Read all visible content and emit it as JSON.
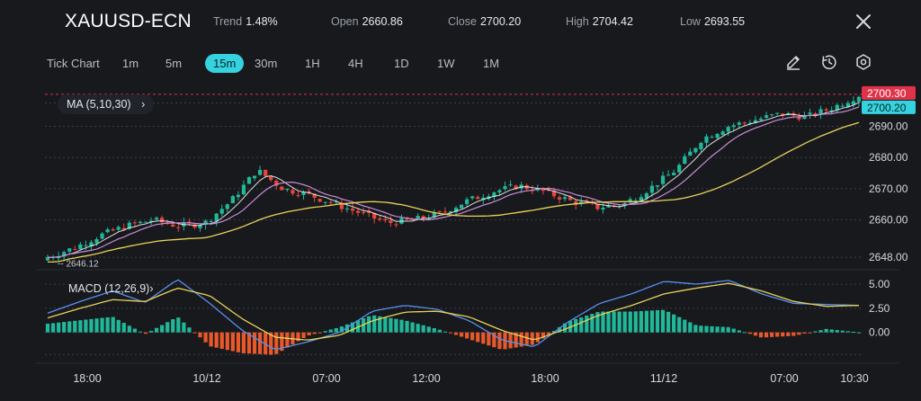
{
  "header": {
    "symbol": "XAUUSD-ECN",
    "trend_label": "Trend",
    "trend_value": "1.48%",
    "open_label": "Open",
    "open_value": "2660.86",
    "close_label": "Close",
    "close_value": "2700.20",
    "high_label": "High",
    "high_value": "2704.42",
    "low_label": "Low",
    "low_value": "2693.55",
    "close_icon": "close-icon"
  },
  "timeframes": [
    "Tick Chart",
    "1m",
    "5m",
    "15m",
    "30m",
    "1H",
    "4H",
    "1D",
    "1W",
    "1M"
  ],
  "active_timeframe": "15m",
  "tools": [
    "draw-icon",
    "timer-icon",
    "settings-icon"
  ],
  "indicators": {
    "ma_label": "MA (5,10,30)",
    "macd_label": "MACD (12,26,9)"
  },
  "colors": {
    "up": "#21b89a",
    "down": "#e8463a",
    "ma5": "#ffffff",
    "ma10": "#c98ad8",
    "ma30": "#e8d35a",
    "macd_line": "#5b8ff0",
    "signal_line": "#e8d35a",
    "hist_pos": "#21b89a",
    "hist_neg": "#e8582a",
    "accent": "#35d3df",
    "price_high_tag": "#e0334a",
    "price_close_tag": "#35d3df"
  },
  "chart_data": {
    "type": "candlestick",
    "price_axis_ticks": [
      "2690.00",
      "2680.00",
      "2670.00",
      "2660.00",
      "2648.00"
    ],
    "price_axis_values": [
      2690,
      2680,
      2670,
      2660,
      2648
    ],
    "price_range": [
      2644,
      2704
    ],
    "price_tags": {
      "high": "2700.30",
      "close": "2700.20"
    },
    "min_annotation": "2646.12",
    "x_ticks": [
      "18:00",
      "10/12",
      "07:00",
      "12:00",
      "18:00",
      "11/12",
      "07:00",
      "10:30"
    ],
    "macd_axis_ticks": [
      "5.00",
      "2.50",
      "0.00"
    ],
    "macd_axis_values": [
      5,
      2.5,
      0
    ],
    "macd_range": [
      -3.2,
      6.5
    ],
    "price_path": [
      2648,
      2651,
      2655,
      2658,
      2660,
      2658,
      2659,
      2666,
      2676,
      2670,
      2668,
      2665,
      2662,
      2659,
      2660,
      2662,
      2666,
      2669,
      2671,
      2669,
      2666,
      2664,
      2665,
      2670,
      2676,
      2686,
      2690,
      2692,
      2694,
      2693,
      2696,
      2700
    ],
    "macd_path": [
      2.0,
      3.2,
      4.3,
      3.1,
      5.5,
      3.0,
      0.2,
      -1.8,
      -1.0,
      0.0,
      2.2,
      2.8,
      2.4,
      1.2,
      -0.8,
      -1.5,
      1.0,
      3.0,
      4.0,
      5.3,
      5.0,
      5.4,
      4.0,
      3.0,
      2.9,
      2.8
    ],
    "signal_path": [
      1.5,
      2.5,
      3.4,
      3.2,
      4.6,
      3.8,
      1.4,
      -0.5,
      -0.8,
      -0.3,
      1.2,
      2.1,
      2.2,
      1.6,
      0.2,
      -0.8,
      0.4,
      1.8,
      2.8,
      4.0,
      4.6,
      5.1,
      4.3,
      3.2,
      2.7,
      2.8
    ]
  }
}
